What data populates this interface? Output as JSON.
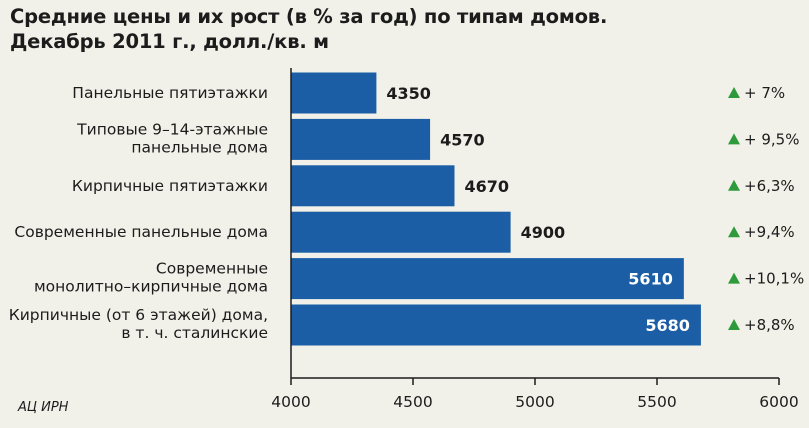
{
  "title_lines": [
    "Средние цены и их рост (в % за год) по типам домов.",
    "Декабрь 2011 г., долл./кв. м"
  ],
  "source": "АЦ ИРН",
  "colors": {
    "bar": "#1b5ea5",
    "arrow": "#2e9a3c",
    "background": "#f1f1e9"
  },
  "chart_data": {
    "type": "bar",
    "orientation": "horizontal",
    "title": "Средние цены и их рост (в % за год) по типам домов. Декабрь 2011 г., долл./кв. м",
    "categories": [
      [
        "Панельные пятиэтажки"
      ],
      [
        "Типовые 9–14-этажные",
        "панельные дома"
      ],
      [
        "Кирпичные пятиэтажки"
      ],
      [
        "Современные панельные дома"
      ],
      [
        "Современные",
        "монолитно–кирпичные дома"
      ],
      [
        "Кирпичные (от 6 этажей) дома,",
        "в т. ч. сталинские"
      ]
    ],
    "values": [
      4350,
      4570,
      4670,
      4900,
      5610,
      5680
    ],
    "value_labels": [
      "4350",
      "4570",
      "4670",
      "4900",
      "5610",
      "5680"
    ],
    "growth_labels": [
      "+ 7%",
      "+ 9,5%",
      "+6,3%",
      "+9,4%",
      "+10,1%",
      "+8,8%"
    ],
    "xlim": [
      4000,
      6000
    ],
    "xticks": [
      4000,
      4500,
      5000,
      5500,
      6000
    ],
    "xtick_labels": [
      "4000",
      "4500",
      "5000",
      "5500",
      "6000"
    ],
    "grid": false,
    "legend": "none"
  }
}
